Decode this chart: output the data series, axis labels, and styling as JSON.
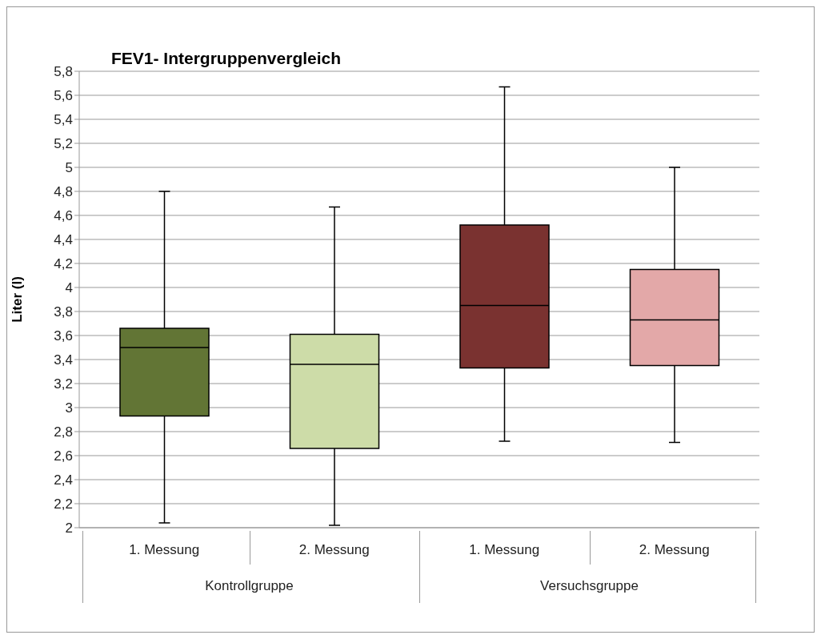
{
  "chart_data": {
    "type": "box",
    "title": "FEV1- Intergruppenvergleich",
    "ylabel": "Liter (l)",
    "categories": [
      "1. Messung",
      "2. Messung",
      "1. Messung",
      "2. Messung"
    ],
    "annotations": [
      "Kontrollgruppe",
      "Versuchsgruppe"
    ],
    "colors": [
      "#627535",
      "#cddca8",
      "#7a3230",
      "#e3a8a8"
    ],
    "boxes": [
      {
        "low": 2.04,
        "q1": 2.93,
        "median": 3.5,
        "q3": 3.66,
        "high": 4.8
      },
      {
        "low": 2.02,
        "q1": 2.66,
        "median": 3.36,
        "q3": 3.61,
        "high": 4.67
      },
      {
        "low": 2.72,
        "q1": 3.33,
        "median": 3.85,
        "q3": 4.52,
        "high": 5.67
      },
      {
        "low": 2.71,
        "q1": 3.35,
        "median": 3.73,
        "q3": 4.15,
        "high": 5.0
      }
    ],
    "ylim": [
      2,
      5.8
    ],
    "yticks": [
      2,
      {
        "value": 2.2,
        "label": "2,2"
      },
      {
        "value": 2.4,
        "label": "2,4"
      },
      {
        "value": 2.6,
        "label": "2,6"
      },
      {
        "value": 2.8,
        "label": "2,8"
      },
      3,
      {
        "value": 3.2,
        "label": "3,2"
      },
      {
        "value": 3.4,
        "label": "3,4"
      },
      {
        "value": 3.6,
        "label": "3,6"
      },
      {
        "value": 3.8,
        "label": "3,8"
      },
      4,
      {
        "value": 4.2,
        "label": "4,2"
      },
      {
        "value": 4.4,
        "label": "4,4"
      },
      {
        "value": 4.6,
        "label": "4,6"
      },
      {
        "value": 4.8,
        "label": "4,8"
      },
      5,
      {
        "value": 5.2,
        "label": "5,2"
      },
      {
        "value": 5.4,
        "label": "5,4"
      },
      {
        "value": 5.6,
        "label": "5,6"
      },
      {
        "value": 5.8,
        "label": "5,8"
      }
    ],
    "grid": "y"
  }
}
